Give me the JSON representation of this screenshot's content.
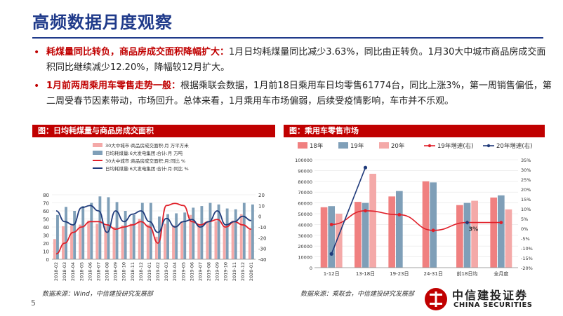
{
  "title": "高频数据月度观察",
  "bullets": [
    {
      "lead": "耗煤量同比转负，商品房成交面积降幅扩大：",
      "text": "1月日均耗煤量同比减少3.63%，同比由正转负。1月30大中城市商品房成交面积同比继续减少12.20%，降幅较12月扩大。"
    },
    {
      "lead": "1月前两周乘用车零售走势一般：",
      "text": "根据乘联会数据，1月前18日乘用车日均零售61774台，同比上涨3%，第一周销售偏低，第二周受春节因素带动，市场回升。总体来看，1月乘用车市场偏弱，后续受疫情影响，车市并不乐观。"
    }
  ],
  "left_panel": {
    "header": "图：日均耗煤量与商品房成交面积",
    "source": "数据来源：Wind，中信建投研究发展部"
  },
  "right_panel": {
    "header": "图：乘用车零售市场",
    "source": "数据来源：乘联会，中信建投研究发展部"
  },
  "page_number": "5",
  "logo": {
    "cn": "中信建投证券",
    "en": "CHINA SECURITIES"
  },
  "colors": {
    "red": "#c00000",
    "blue": "#1f3a8a",
    "bar_pink": "#f4a9a8",
    "bar_blue": "#7f9fb8",
    "bar_red": "#f08080",
    "line_red": "#e0202a",
    "line_navy": "#1f3a7a"
  },
  "chart_data": [
    {
      "type": "bar",
      "legend": [
        "30大中城市:商品房成交面积:月 万平方米",
        "日均耗煤量:6大发电集团:合计:月 万吨",
        "30大中城市:商品房成交面积:月:同比 %",
        "日均耗煤量:6大发电集团:合计:月:同比 %"
      ],
      "categories": [
        "2018-02",
        "2018-03",
        "2018-04",
        "2018-05",
        "2018-06",
        "2018-07",
        "2018-08",
        "2018-09",
        "2018-10",
        "2018-11",
        "2018-12",
        "2019-01",
        "2019-02",
        "2019-03",
        "2019-04",
        "2019-05",
        "2019-06",
        "2019-07",
        "2019-08",
        "2019-09",
        "2019-10",
        "2019-11",
        "2019-12",
        "2020-01"
      ],
      "y_left": {
        "min": 0,
        "max": 80,
        "ticks": [
          0,
          10,
          20,
          30,
          40,
          50,
          60,
          70,
          80
        ]
      },
      "y_right": {
        "min": -40,
        "max": 20,
        "ticks": [
          -40,
          -30,
          -20,
          -10,
          0,
          10,
          20
        ]
      },
      "series": [
        {
          "name": "30大中城市:商品房成交面积:月 万平方米",
          "axis": "left",
          "kind": "bar",
          "values": [
            25,
            41,
            42,
            43,
            48,
            44,
            41,
            40,
            42,
            44,
            50,
            43,
            28,
            44,
            42,
            47,
            55,
            43,
            46,
            47,
            41,
            48,
            56,
            37
          ]
        },
        {
          "name": "日均耗煤量:6大发电集团:合计:月 万吨",
          "axis": "left",
          "kind": "bar",
          "values": [
            55,
            65,
            60,
            66,
            70,
            78,
            77,
            71,
            60,
            55,
            70,
            70,
            53,
            56,
            57,
            58,
            64,
            66,
            70,
            68,
            63,
            62,
            70,
            68
          ]
        },
        {
          "name": "30大中城市:商品房成交面积:月:同比 %",
          "axis": "right",
          "kind": "line",
          "values": [
            -35,
            -25,
            -15,
            -10,
            -5,
            -5,
            -8,
            -12,
            -10,
            -8,
            -5,
            -10,
            -25,
            10,
            12,
            10,
            -5,
            -8,
            -5,
            -3,
            -10,
            -5,
            -8,
            -12
          ]
        },
        {
          "name": "日均耗煤量:6大发电集团:合计:月:同比 %",
          "axis": "right",
          "kind": "line",
          "values": [
            5,
            -5,
            -8,
            8,
            10,
            5,
            -15,
            5,
            -5,
            2,
            5,
            -5,
            -15,
            -2,
            -10,
            -5,
            -3,
            -10,
            -5,
            5,
            -8,
            -5,
            0,
            -4
          ]
        }
      ]
    },
    {
      "type": "bar",
      "legend": [
        "18年",
        "19年",
        "20年",
        "19年增速(右)",
        "20年增速(右)"
      ],
      "categories": [
        "1-12日",
        "13-18日",
        "19-23日",
        "24-31日",
        "前18日均",
        "全月度"
      ],
      "y_left": {
        "min": 0,
        "max": 100000,
        "ticks": [
          0,
          10000,
          20000,
          30000,
          40000,
          50000,
          60000,
          70000,
          80000,
          90000,
          100000
        ]
      },
      "y_right": {
        "min": -20,
        "max": 35,
        "ticks": [
          "-20%",
          "-15%",
          "-10%",
          "-5%",
          "0%",
          "5%",
          "10%",
          "15%",
          "20%",
          "25%",
          "30%",
          "35%"
        ]
      },
      "series": [
        {
          "name": "18年",
          "axis": "left",
          "kind": "bar",
          "values": [
            56000,
            61000,
            66000,
            80000,
            58000,
            65000
          ]
        },
        {
          "name": "19年",
          "axis": "left",
          "kind": "bar",
          "values": [
            57000,
            60000,
            71000,
            79000,
            60000,
            67000
          ]
        },
        {
          "name": "20年",
          "axis": "left",
          "kind": "bar",
          "values": [
            50000,
            87000,
            null,
            null,
            62000,
            54000
          ]
        },
        {
          "name": "19年增速(右)",
          "axis": "right",
          "kind": "line",
          "values": [
            2,
            9,
            7,
            -1,
            3,
            3
          ]
        },
        {
          "name": "20年增速(右)",
          "axis": "right",
          "kind": "line",
          "values": [
            -13,
            31,
            null,
            null,
            3,
            null
          ]
        }
      ],
      "annotation": "3%"
    }
  ]
}
